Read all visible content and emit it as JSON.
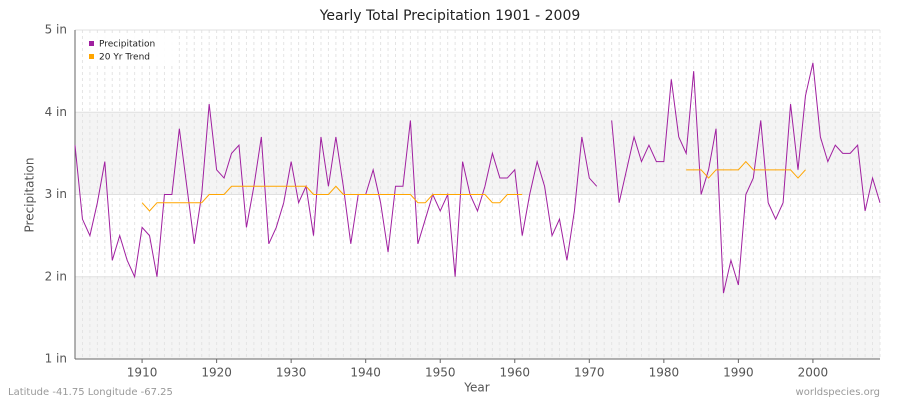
{
  "chart_data": {
    "type": "line",
    "title": "Yearly Total Precipitation 1901 - 2009",
    "x_label": "Year",
    "y_label": "Precipitation",
    "footer_left": "Latitude -41.75 Longitude -67.25",
    "footer_right": "worldspecies.org",
    "x": [
      1901,
      1902,
      1903,
      1904,
      1905,
      1906,
      1907,
      1908,
      1909,
      1910,
      1911,
      1912,
      1913,
      1914,
      1915,
      1916,
      1917,
      1918,
      1919,
      1920,
      1921,
      1922,
      1923,
      1924,
      1925,
      1926,
      1927,
      1928,
      1929,
      1930,
      1931,
      1932,
      1933,
      1934,
      1935,
      1936,
      1937,
      1938,
      1939,
      1940,
      1941,
      1942,
      1943,
      1944,
      1945,
      1946,
      1947,
      1948,
      1949,
      1950,
      1951,
      1952,
      1953,
      1954,
      1955,
      1956,
      1957,
      1958,
      1959,
      1960,
      1961,
      1962,
      1963,
      1964,
      1965,
      1966,
      1967,
      1968,
      1969,
      1970,
      1971,
      1972,
      1973,
      1974,
      1975,
      1976,
      1977,
      1978,
      1979,
      1980,
      1981,
      1982,
      1983,
      1984,
      1985,
      1986,
      1987,
      1988,
      1989,
      1990,
      1991,
      1992,
      1993,
      1994,
      1995,
      1996,
      1997,
      1998,
      1999,
      2000,
      2001,
      2002,
      2003,
      2004,
      2005,
      2006,
      2007,
      2008,
      2009
    ],
    "series": [
      {
        "name": "Precipitation",
        "color": "#a020a0",
        "values": [
          3.6,
          2.7,
          2.5,
          2.9,
          3.4,
          2.2,
          2.5,
          2.2,
          2.0,
          2.6,
          2.5,
          2.0,
          3.0,
          3.0,
          3.8,
          3.1,
          2.4,
          3.0,
          4.1,
          3.3,
          3.2,
          3.5,
          3.6,
          2.6,
          3.1,
          3.7,
          2.4,
          2.6,
          2.9,
          3.4,
          2.9,
          3.1,
          2.5,
          3.7,
          3.1,
          3.7,
          3.1,
          2.4,
          3.0,
          3.0,
          3.3,
          2.9,
          2.3,
          3.1,
          3.1,
          3.9,
          2.4,
          2.7,
          3.0,
          2.8,
          3.0,
          2.0,
          3.4,
          3.0,
          2.8,
          3.1,
          3.5,
          3.2,
          3.2,
          3.3,
          2.5,
          3.0,
          3.4,
          3.1,
          2.5,
          2.7,
          2.2,
          2.8,
          3.7,
          3.2,
          3.1,
          null,
          3.9,
          2.9,
          3.3,
          3.7,
          3.4,
          3.6,
          3.4,
          3.4,
          4.4,
          3.7,
          3.5,
          4.5,
          3.0,
          3.3,
          3.8,
          1.8,
          2.2,
          1.9,
          3.0,
          3.2,
          3.9,
          2.9,
          2.7,
          2.9,
          4.1,
          3.3,
          4.2,
          4.6,
          3.7,
          3.4,
          3.6,
          3.5,
          3.5,
          3.6,
          2.8,
          3.2,
          2.9
        ]
      },
      {
        "name": "20 Yr Trend",
        "color": "#ffa500",
        "values": [
          null,
          null,
          null,
          null,
          null,
          null,
          null,
          null,
          null,
          2.9,
          2.8,
          2.9,
          2.9,
          2.9,
          2.9,
          2.9,
          2.9,
          2.9,
          3.0,
          3.0,
          3.0,
          3.1,
          3.1,
          3.1,
          3.1,
          3.1,
          3.1,
          3.1,
          3.1,
          3.1,
          3.1,
          3.1,
          3.0,
          3.0,
          3.0,
          3.1,
          3.0,
          3.0,
          3.0,
          3.0,
          3.0,
          3.0,
          3.0,
          3.0,
          3.0,
          3.0,
          2.9,
          2.9,
          3.0,
          3.0,
          3.0,
          3.0,
          3.0,
          3.0,
          3.0,
          3.0,
          2.9,
          2.9,
          3.0,
          3.0,
          3.0,
          null,
          null,
          null,
          null,
          null,
          null,
          null,
          null,
          null,
          null,
          null,
          null,
          null,
          null,
          null,
          null,
          null,
          null,
          null,
          null,
          null,
          3.3,
          3.3,
          3.3,
          3.2,
          3.3,
          3.3,
          3.3,
          3.3,
          3.4,
          3.3,
          3.3,
          3.3,
          3.3,
          3.3,
          3.3,
          3.2,
          3.3,
          null,
          null,
          null,
          null,
          null,
          null,
          null,
          null,
          null,
          null
        ]
      }
    ],
    "xlim": [
      1901,
      2009
    ],
    "xticks": [
      1910,
      1920,
      1930,
      1940,
      1950,
      1960,
      1970,
      1980,
      1990,
      2000
    ],
    "ylim": [
      1,
      5
    ],
    "yticks": [
      {
        "value": 1,
        "label": "1 in"
      },
      {
        "value": 2,
        "label": "2 in"
      },
      {
        "value": 3,
        "label": "3 in"
      },
      {
        "value": 4,
        "label": "4 in"
      },
      {
        "value": 5,
        "label": "5 in"
      }
    ],
    "grid": true,
    "legend": "top-left"
  }
}
